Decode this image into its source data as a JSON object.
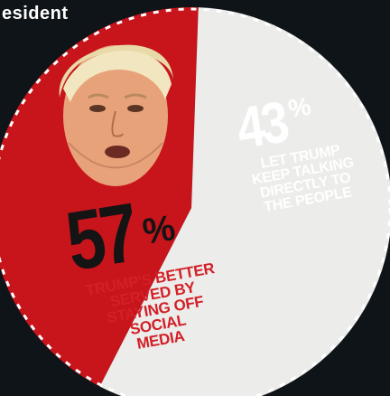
{
  "header": {
    "title_fragment": "esident"
  },
  "chart_data": {
    "type": "pie",
    "title": "",
    "slices": [
      {
        "label": "TRUMP'S BETTER SERVED BY STAYING OFF SOCIAL MEDIA",
        "value": 57,
        "display": "57",
        "color": "#ececea"
      },
      {
        "label": "LET TRUMP KEEP TALKING DIRECTLY TO THE PEOPLE",
        "value": 43,
        "display": "43",
        "color": "#c8141b"
      }
    ],
    "percent_symbol": "%",
    "label_lines": {
      "left": [
        "TRUMP'S BETTER",
        "SERVED BY",
        "STAYING OFF",
        "SOCIAL",
        "MEDIA"
      ],
      "right": [
        "LET TRUMP",
        "KEEP TALKING",
        "DIRECTLY TO",
        "THE PEOPLE"
      ]
    },
    "legend": "none"
  },
  "colors": {
    "background": "#0f1419",
    "border_dash": "#ffffff",
    "left_label": "#d31f26",
    "left_number": "#141414",
    "right_text": "#ffffff"
  },
  "images": {
    "portrait": "face-photo"
  }
}
